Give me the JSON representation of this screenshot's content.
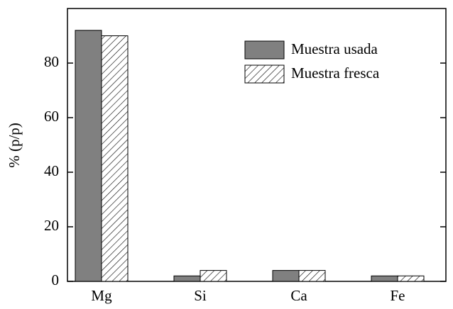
{
  "chart_data": {
    "type": "bar",
    "y_label": "% (p/p)",
    "categories": [
      "Mg",
      "Si",
      "Ca",
      "Fe"
    ],
    "series": [
      {
        "name": "Muestra usada",
        "color": "#808080",
        "values": [
          92,
          2,
          4,
          2
        ]
      },
      {
        "name": "Muestra fresca",
        "color": "hatch",
        "values": [
          90,
          4,
          4,
          2
        ]
      }
    ],
    "ylim": [
      0,
      100
    ],
    "yticks": [
      0,
      20,
      40,
      60,
      80
    ],
    "legend": "upper-right"
  }
}
